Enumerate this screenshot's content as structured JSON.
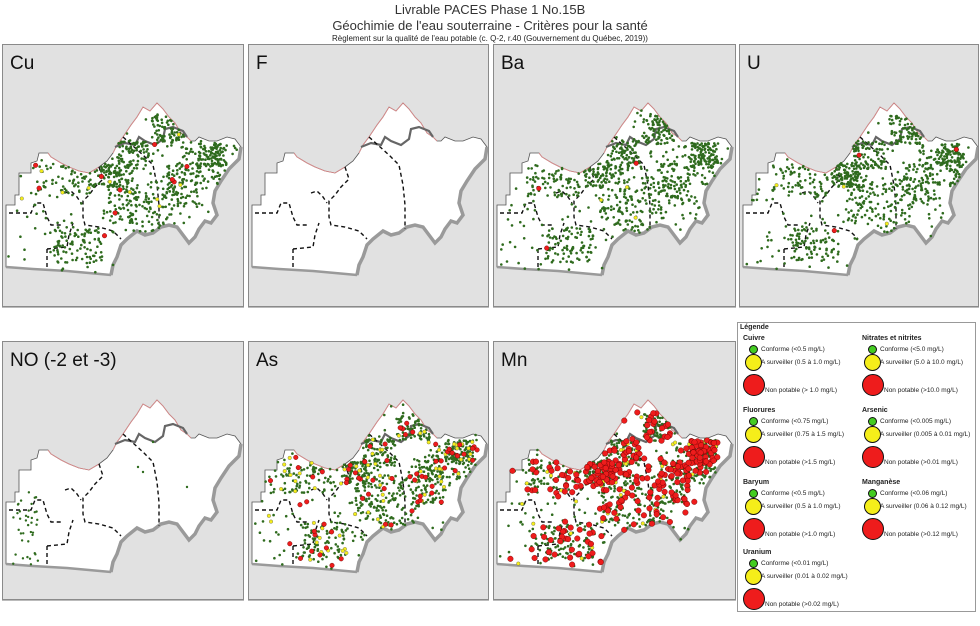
{
  "header": {
    "line1": "Livrable PACES Phase 1 No.15B",
    "line2": "Géochimie de l'eau souterraine - Critères pour la santé",
    "line3": "Règlement sur la qualité de l'eau potable (c. Q-2, r.40 (Gouvernement du Québec, 2019))"
  },
  "colors": {
    "panel_background": "#e1e1e1",
    "territory_fill": "#ffffff",
    "conforme": "#44cc22",
    "conforme_map": "#2f6b1e",
    "a_surveiller": "#f5ee1a",
    "non_potable": "#ee1c1c",
    "shore_line": "#9a9a9a",
    "north_boundary": "#e08a8a"
  },
  "panels": [
    {
      "id": "cu",
      "title": "Cu",
      "parameter": "Cuivre",
      "density": {
        "green": "high",
        "yellow": "few",
        "red": "few"
      }
    },
    {
      "id": "f",
      "title": "F",
      "parameter": "Fluorures",
      "density": {
        "green": "none",
        "yellow": "none",
        "red": "none"
      }
    },
    {
      "id": "ba",
      "title": "Ba",
      "parameter": "Baryum",
      "density": {
        "green": "high",
        "yellow": "very few",
        "red": "very few"
      }
    },
    {
      "id": "u",
      "title": "U",
      "parameter": "Uranium",
      "density": {
        "green": "high",
        "yellow": "very few",
        "red": "very few"
      }
    },
    {
      "id": "no",
      "title": "NO (-2 et -3)",
      "parameter": "Nitrates et nitrites",
      "density": {
        "green": "sparse",
        "yellow": "none",
        "red": "none"
      }
    },
    {
      "id": "as",
      "title": "As",
      "parameter": "Arsenic",
      "density": {
        "green": "high",
        "yellow": "moderate",
        "red": "moderate"
      }
    },
    {
      "id": "mn",
      "title": "Mn",
      "parameter": "Manganèse",
      "density": {
        "green": "high",
        "yellow": "moderate",
        "red": "high"
      }
    }
  ],
  "legend": {
    "title": "Légende",
    "groups": [
      {
        "name": "Cuivre",
        "items": [
          {
            "class": "conforme",
            "label": "Conforme (<0.5 mg/L)"
          },
          {
            "class": "a_surveiller",
            "label": "A surveiller (0.5 à 1.0 mg/L)"
          },
          {
            "class": "non_potable",
            "label": "Non potable (> 1.0 mg/L)"
          }
        ]
      },
      {
        "name": "Nitrates et nitrites",
        "items": [
          {
            "class": "conforme",
            "label": "Conforme (<5.0 mg/L)"
          },
          {
            "class": "a_surveiller",
            "label": "A surveiller (5.0 à 10.0 mg/L)"
          },
          {
            "class": "non_potable",
            "label": "Non potable (>10.0 mg/L)"
          }
        ]
      },
      {
        "name": "Fluorures",
        "items": [
          {
            "class": "conforme",
            "label": "Conforme (<0.75 mg/L)"
          },
          {
            "class": "a_surveiller",
            "label": "A surveiller (0.75 à 1.5 mg/L)"
          },
          {
            "class": "non_potable",
            "label": "Non potable (>1.5 mg/L)"
          }
        ]
      },
      {
        "name": "Arsenic",
        "items": [
          {
            "class": "conforme",
            "label": "Conforme (<0.005 mg/L)"
          },
          {
            "class": "a_surveiller",
            "label": "A surveiller (0.005 à 0.01 mg/L)"
          },
          {
            "class": "non_potable",
            "label": "Non potable (>0.01 mg/L)"
          }
        ]
      },
      {
        "name": "Baryum",
        "items": [
          {
            "class": "conforme",
            "label": "Conforme (<0.5 mg/L)"
          },
          {
            "class": "a_surveiller",
            "label": "A surveiller (0.5 à 1.0 mg/L)"
          },
          {
            "class": "non_potable",
            "label": "Non potable (>1.0 mg/L)"
          }
        ]
      },
      {
        "name": "Manganèse",
        "items": [
          {
            "class": "conforme",
            "label": "Conforme (<0.06 mg/L)"
          },
          {
            "class": "a_surveiller",
            "label": "A surveiller (0.06 à 0.12 mg/L)"
          },
          {
            "class": "non_potable",
            "label": "Non potable (>0.12 mg/L)"
          }
        ]
      },
      {
        "name": "Uranium",
        "items": [
          {
            "class": "conforme",
            "label": "Conforme (<0.01 mg/L)"
          },
          {
            "class": "a_surveiller",
            "label": "A surveiller (0.01 à 0.02 mg/L)"
          },
          {
            "class": "non_potable",
            "label": "Non potable (>0.02 mg/L)"
          }
        ]
      }
    ]
  }
}
